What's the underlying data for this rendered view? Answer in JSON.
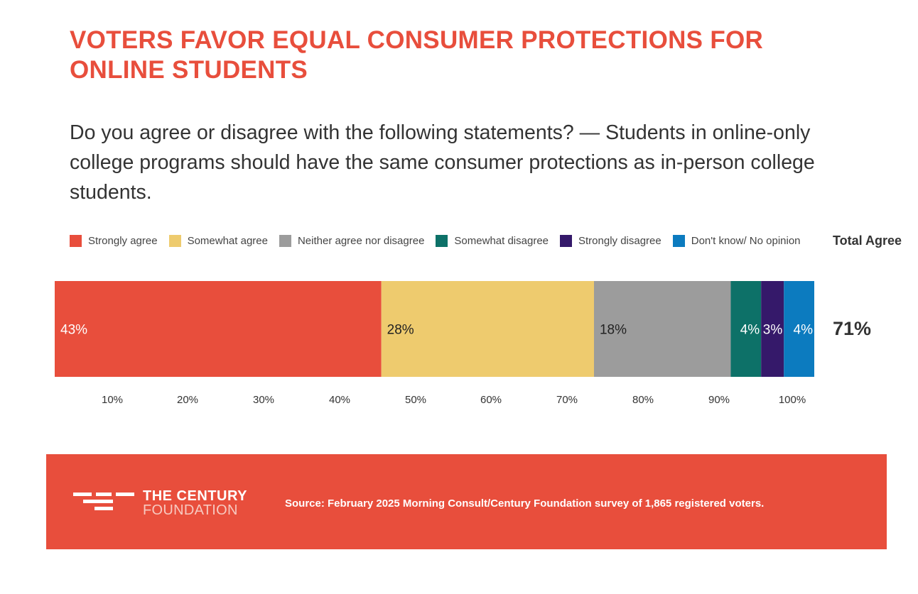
{
  "title": "VOTERS FAVOR EQUAL CONSUMER PROTECTIONS FOR ONLINE STUDENTS",
  "subtitle": "Do you agree or disagree with the following statements? — Students in online-only college programs should have the same consumer protections as in-person college students.",
  "total_agree": {
    "label": "Total Agree",
    "value": "71%"
  },
  "chart_data": {
    "type": "bar",
    "orientation": "horizontal-stacked",
    "categories": [
      ""
    ],
    "series": [
      {
        "name": "Strongly agree",
        "values": [
          43
        ],
        "label": "43%",
        "color": "#e84e3c",
        "label_color": "#ffffff"
      },
      {
        "name": "Somewhat agree",
        "values": [
          28
        ],
        "label": "28%",
        "color": "#eecb6e",
        "label_color": "#222222"
      },
      {
        "name": "Neither agree nor disagree",
        "values": [
          18
        ],
        "label": "18%",
        "color": "#9c9c9c",
        "label_color": "#222222"
      },
      {
        "name": "Somewhat disagree",
        "values": [
          4
        ],
        "label": "4%",
        "color": "#0d7168",
        "label_color": "#ffffff"
      },
      {
        "name": "Strongly disagree",
        "values": [
          3
        ],
        "label": "3%",
        "color": "#35196a",
        "label_color": "#ffffff"
      },
      {
        "name": "Don't know/ No opinion",
        "values": [
          4
        ],
        "label": "4%",
        "color": "#0c7bbf",
        "label_color": "#ffffff"
      }
    ],
    "x_ticks": [
      "10%",
      "20%",
      "30%",
      "40%",
      "50%",
      "60%",
      "70%",
      "80%",
      "90%",
      "100%"
    ],
    "xlim": [
      0,
      100
    ],
    "legend_position": "top",
    "grid": false
  },
  "footer": {
    "logo_line1": "THE CENTURY",
    "logo_line2": "FOUNDATION",
    "source": "Source: February 2025 Morning Consult/Century Foundation survey of 1,865 registered voters."
  },
  "colors": {
    "brand": "#e84e3c",
    "text": "#333333"
  }
}
